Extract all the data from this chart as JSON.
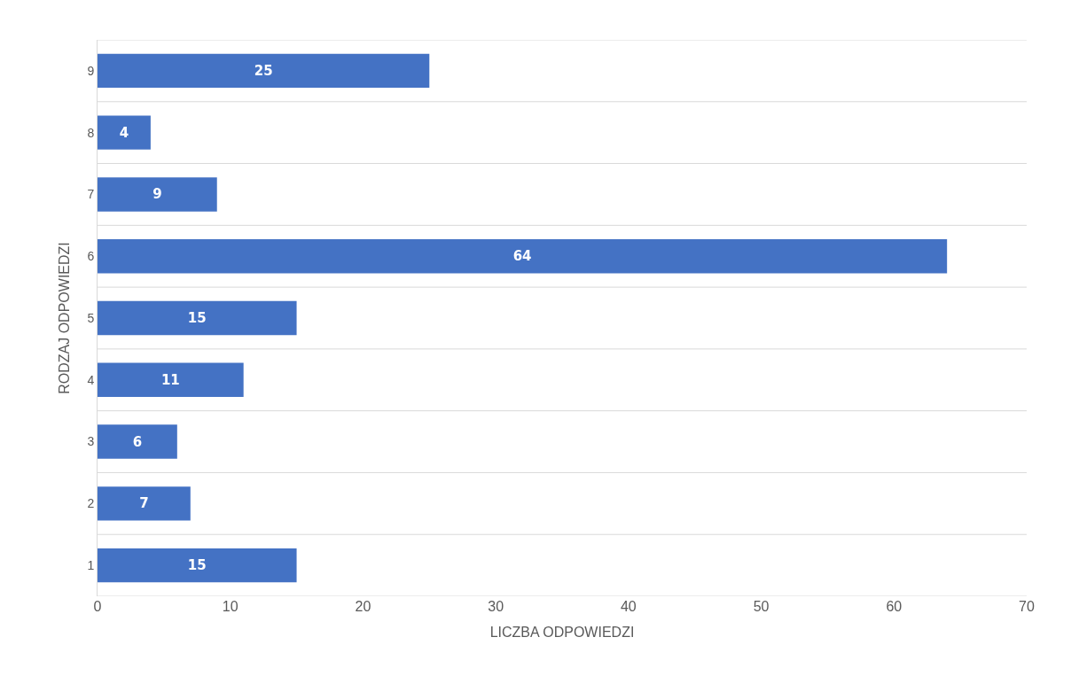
{
  "chart_data": {
    "type": "bar",
    "orientation": "horizontal",
    "xlabel": "LICZBA ODPOWIEDZI",
    "ylabel": "RODZAJ ODPOWIEDZI",
    "categories": [
      "9",
      "8",
      "7",
      "6",
      "5",
      "4",
      "3",
      "2",
      "1"
    ],
    "values": [
      25,
      4,
      9,
      64,
      15,
      11,
      6,
      7,
      15
    ],
    "color": "#4472c4",
    "data_labels": true,
    "xlim": [
      0,
      70
    ],
    "xticks": [
      0,
      10,
      20,
      30,
      40,
      50,
      60,
      70
    ],
    "grid": "y"
  }
}
